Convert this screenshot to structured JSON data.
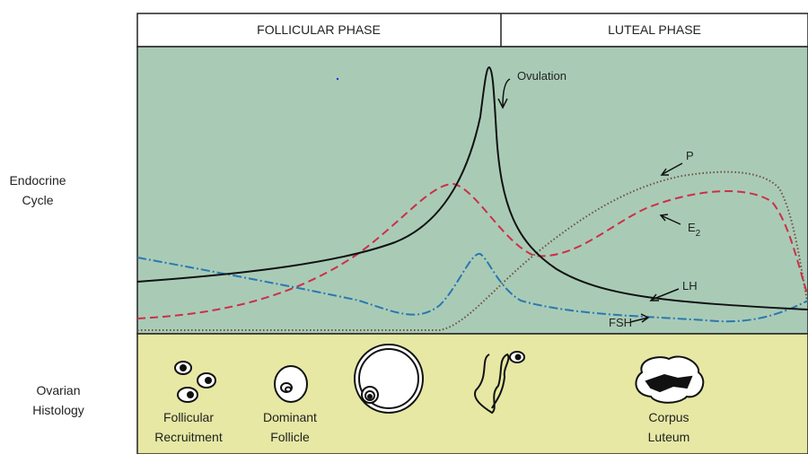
{
  "phases": [
    "FOLLICULAR PHASE",
    "LUTEAL PHASE"
  ],
  "row_labels": [
    [
      "Endocrine",
      "Cycle"
    ],
    [
      "Ovarian",
      "Histology"
    ]
  ],
  "hormone_labels": {
    "ovulation": "Ovulation",
    "p": "P",
    "e": "E",
    "e_sub": "2",
    "lh": "LH",
    "fsh": "FSH"
  },
  "histology_labels": [
    [
      "Follicular",
      "Recruitment"
    ],
    [
      "Dominant",
      "Follicle"
    ],
    [
      "Corpus",
      "Luteum"
    ]
  ]
}
